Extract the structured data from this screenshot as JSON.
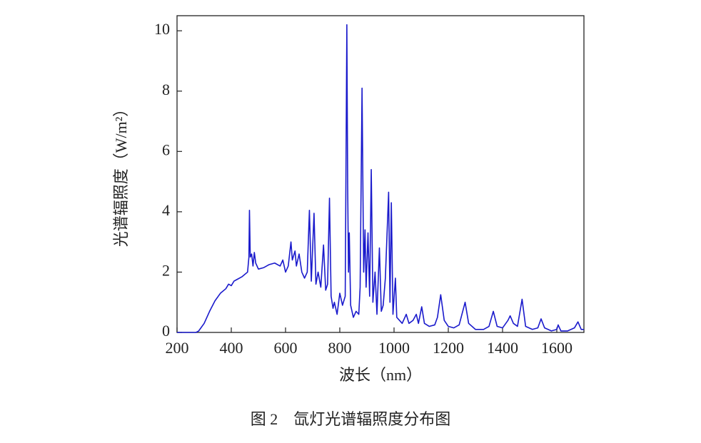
{
  "chart_data": {
    "type": "line",
    "x_label": "波长（nm）",
    "y_label": "光谱辐照度（W/m²）",
    "color": "#1a1acc",
    "xlim": [
      200,
      1700
    ],
    "xticks": [
      200,
      400,
      600,
      800,
      1000,
      1200,
      1400,
      1600
    ],
    "ylim": [
      0,
      10.5
    ],
    "yticks": [
      0,
      2,
      4,
      6,
      8,
      10
    ],
    "grid": false,
    "x": [
      200,
      270,
      280,
      300,
      320,
      340,
      360,
      380,
      390,
      400,
      410,
      420,
      440,
      460,
      465,
      467,
      470,
      475,
      480,
      485,
      490,
      500,
      520,
      540,
      560,
      580,
      590,
      600,
      610,
      620,
      625,
      635,
      640,
      650,
      660,
      670,
      680,
      688,
      695,
      705,
      712,
      720,
      730,
      740,
      748,
      755,
      762,
      768,
      775,
      780,
      790,
      800,
      810,
      820,
      826,
      829,
      832,
      835,
      840,
      850,
      860,
      870,
      875,
      882,
      888,
      893,
      897,
      904,
      910,
      916,
      922,
      930,
      937,
      946,
      953,
      960,
      968,
      980,
      985,
      990,
      996,
      1005,
      1010,
      1020,
      1030,
      1045,
      1055,
      1070,
      1082,
      1090,
      1102,
      1112,
      1130,
      1150,
      1160,
      1172,
      1185,
      1200,
      1220,
      1240,
      1262,
      1275,
      1300,
      1330,
      1350,
      1366,
      1380,
      1400,
      1420,
      1428,
      1440,
      1455,
      1472,
      1485,
      1510,
      1530,
      1542,
      1555,
      1580,
      1600,
      1605,
      1615,
      1640,
      1665,
      1678,
      1690,
      1700
    ],
    "values": [
      0,
      0,
      0.05,
      0.3,
      0.7,
      1.05,
      1.3,
      1.45,
      1.6,
      1.55,
      1.7,
      1.75,
      1.85,
      2.0,
      2.5,
      4.05,
      2.5,
      2.6,
      2.2,
      2.65,
      2.3,
      2.1,
      2.15,
      2.25,
      2.3,
      2.2,
      2.4,
      2.0,
      2.2,
      3.0,
      2.4,
      2.7,
      2.2,
      2.6,
      2.0,
      1.8,
      2.0,
      4.05,
      1.7,
      3.95,
      1.6,
      2.0,
      1.5,
      2.9,
      1.4,
      1.6,
      4.45,
      1.2,
      0.8,
      1.0,
      0.6,
      1.3,
      0.9,
      1.2,
      10.2,
      4.9,
      2.0,
      3.3,
      0.9,
      0.5,
      0.7,
      0.6,
      1.5,
      8.1,
      2.0,
      3.4,
      1.5,
      3.3,
      1.2,
      5.4,
      1.0,
      2.0,
      0.6,
      2.8,
      0.7,
      0.9,
      1.8,
      4.65,
      1.0,
      4.3,
      0.6,
      1.8,
      0.5,
      0.4,
      0.3,
      0.6,
      0.3,
      0.4,
      0.6,
      0.3,
      0.85,
      0.3,
      0.2,
      0.25,
      0.5,
      1.25,
      0.4,
      0.2,
      0.15,
      0.25,
      1.0,
      0.3,
      0.1,
      0.1,
      0.2,
      0.7,
      0.2,
      0.15,
      0.4,
      0.55,
      0.3,
      0.2,
      1.1,
      0.2,
      0.1,
      0.15,
      0.45,
      0.15,
      0.05,
      0.1,
      0.25,
      0.05,
      0.05,
      0.15,
      0.35,
      0.1,
      0.1
    ]
  },
  "caption": "图 2　氙灯光谱辐照度分布图"
}
